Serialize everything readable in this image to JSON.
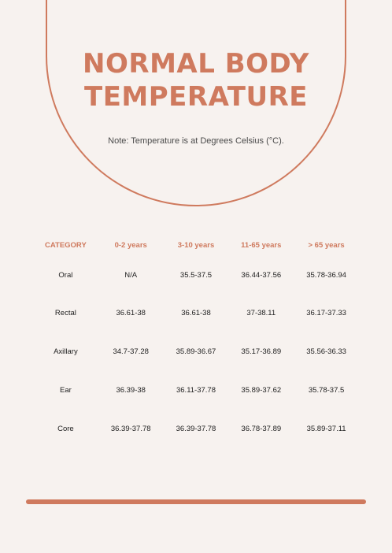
{
  "header": {
    "title_line1": "NORMAL BODY",
    "title_line2": "TEMPERATURE",
    "note": "Note: Temperature is at Degrees Celsius (°C)."
  },
  "table": {
    "columns": [
      "CATEGORY",
      "0-2 years",
      "3-10 years",
      "11-65 years",
      "> 65 years"
    ],
    "rows": [
      [
        "Oral",
        "N/A",
        "35.5-37.5",
        "36.44-37.56",
        "35.78-36.94"
      ],
      [
        "Rectal",
        "36.61-38",
        "36.61-38",
        "37-38.11",
        "36.17-37.33"
      ],
      [
        "Axillary",
        "34.7-37.28",
        "35.89-36.67",
        "35.17-36.89",
        "35.56-36.33"
      ],
      [
        "Ear",
        "36.39-38",
        "36.11-37.78",
        "35.89-37.62",
        "35.78-37.5"
      ],
      [
        "Core",
        "36.39-37.78",
        "36.39-37.78",
        "36.78-37.89",
        "35.89-37.11"
      ]
    ]
  },
  "colors": {
    "accent": "#cf7a5e",
    "background": "#f7f2ef",
    "text": "#222222"
  }
}
